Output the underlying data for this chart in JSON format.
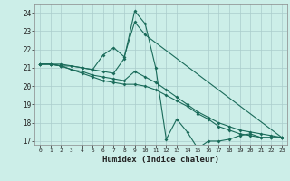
{
  "title": "",
  "xlabel": "Humidex (Indice chaleur)",
  "bg_color": "#cceee8",
  "grid_color": "#aacccc",
  "line_color": "#1a6b5a",
  "xlim": [
    -0.5,
    23.5
  ],
  "ylim": [
    16.8,
    24.5
  ],
  "yticks": [
    17,
    18,
    19,
    20,
    21,
    22,
    23,
    24
  ],
  "xticks": [
    0,
    1,
    2,
    3,
    4,
    5,
    6,
    7,
    8,
    9,
    10,
    11,
    12,
    13,
    14,
    15,
    16,
    17,
    18,
    19,
    20,
    21,
    22,
    23
  ],
  "line1_x": [
    0,
    1,
    2,
    3,
    4,
    5,
    6,
    7,
    8,
    9,
    10,
    11,
    12,
    13,
    14,
    15,
    16,
    17,
    18,
    19,
    20,
    21,
    22,
    23
  ],
  "line1_y": [
    21.2,
    21.2,
    21.2,
    21.1,
    21.0,
    20.9,
    20.8,
    20.7,
    21.5,
    24.1,
    23.4,
    21.0,
    17.1,
    18.2,
    17.5,
    16.6,
    17.0,
    17.0,
    17.1,
    17.3,
    17.4,
    17.2,
    17.2,
    17.2
  ],
  "line2_x": [
    0,
    1,
    2,
    3,
    4,
    5,
    6,
    7,
    8,
    9,
    10,
    11,
    12,
    13,
    14,
    15,
    16,
    17,
    18,
    19,
    20,
    21,
    22,
    23
  ],
  "line2_y": [
    21.2,
    21.2,
    21.1,
    20.9,
    20.8,
    20.6,
    20.5,
    20.4,
    20.3,
    20.8,
    20.5,
    20.2,
    19.8,
    19.4,
    19.0,
    18.6,
    18.3,
    18.0,
    17.8,
    17.6,
    17.5,
    17.4,
    17.3,
    17.2
  ],
  "line3_x": [
    0,
    1,
    2,
    3,
    4,
    5,
    6,
    7,
    8,
    9,
    10,
    11,
    12,
    13,
    14,
    15,
    16,
    17,
    18,
    19,
    20,
    21,
    22,
    23
  ],
  "line3_y": [
    21.2,
    21.2,
    21.1,
    20.9,
    20.7,
    20.5,
    20.3,
    20.2,
    20.1,
    20.1,
    20.0,
    19.8,
    19.5,
    19.2,
    18.9,
    18.5,
    18.2,
    17.8,
    17.6,
    17.4,
    17.3,
    17.2,
    17.2,
    17.2
  ],
  "line4_x": [
    0,
    1,
    2,
    3,
    4,
    5,
    6,
    7,
    8,
    9,
    10,
    23
  ],
  "line4_y": [
    21.2,
    21.2,
    21.1,
    21.1,
    21.0,
    20.9,
    21.7,
    22.1,
    21.6,
    23.5,
    22.8,
    17.2
  ]
}
